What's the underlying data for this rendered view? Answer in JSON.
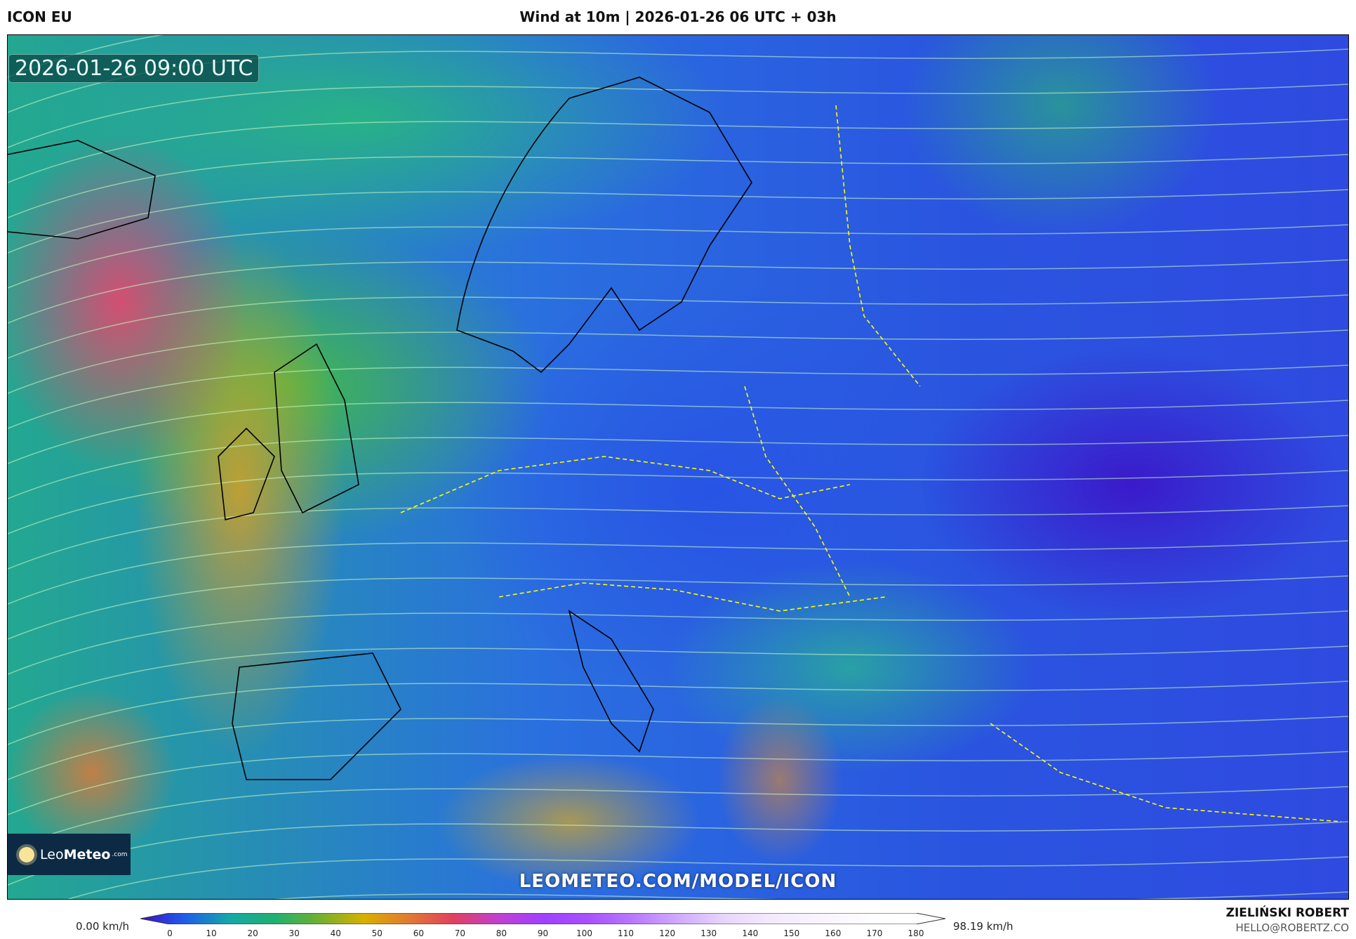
{
  "header": {
    "model": "ICON EU",
    "title": "Wind at 10m | 2026-01-26 06 UTC + 03h"
  },
  "map": {
    "valid_time": "2026-01-26 09:00 UTC",
    "watermark": "LEOMETEO.COM/MODEL/ICON",
    "logo": {
      "name_light": "Leo",
      "name_bold": "Meteo",
      "suffix": ".com"
    }
  },
  "colorbar": {
    "min_label": "0.00 km/h",
    "max_label": "98.19 km/h",
    "unit": "km/h",
    "ticks": [
      "0",
      "10",
      "20",
      "30",
      "40",
      "50",
      "60",
      "70",
      "80",
      "90",
      "100",
      "110",
      "120",
      "130",
      "140",
      "150",
      "160",
      "170",
      "180"
    ],
    "colors": [
      "#3a10c8",
      "#1e5ee8",
      "#16a8a8",
      "#20b070",
      "#70b030",
      "#d8b000",
      "#e07a30",
      "#e04060",
      "#c040d0",
      "#a040ff",
      "#a850ff",
      "#b878ff",
      "#d0a8ff",
      "#e6d4ff",
      "#f2e8ff",
      "#f8f2ff",
      "#fcfaff",
      "#ffffff",
      "#ffffff"
    ]
  },
  "footer": {
    "author": "ZIELIŃSKI ROBERT",
    "email": "HELLO@ROBERTZ.CO"
  }
}
